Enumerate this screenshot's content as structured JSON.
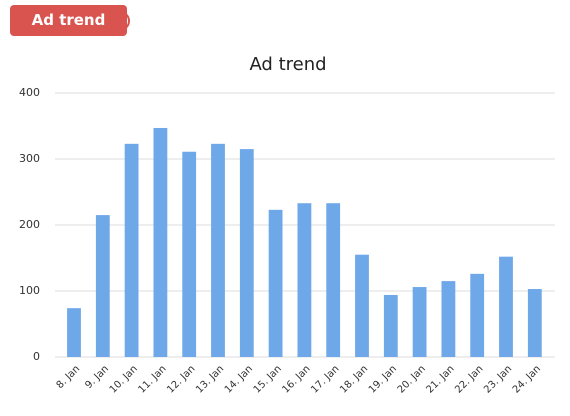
{
  "button": "Ad trend",
  "help": "?",
  "chart_data": {
    "type": "bar",
    "title": "Ad trend",
    "categories": [
      "8. Jan",
      "9. Jan",
      "10. Jan",
      "11. Jan",
      "12. Jan",
      "13. Jan",
      "14. Jan",
      "15. Jan",
      "16. Jan",
      "17. Jan",
      "18. Jan",
      "19. Jan",
      "20. Jan",
      "21. Jan",
      "22. Jan",
      "23. Jan",
      "24. Jan"
    ],
    "values": [
      74,
      215,
      323,
      347,
      311,
      323,
      315,
      223,
      233,
      233,
      155,
      94,
      106,
      115,
      126,
      152,
      103
    ],
    "color": "#6fa8e8",
    "ylim": [
      0,
      400
    ],
    "yticks": [
      0,
      100,
      200,
      300,
      400
    ],
    "grid": true
  }
}
